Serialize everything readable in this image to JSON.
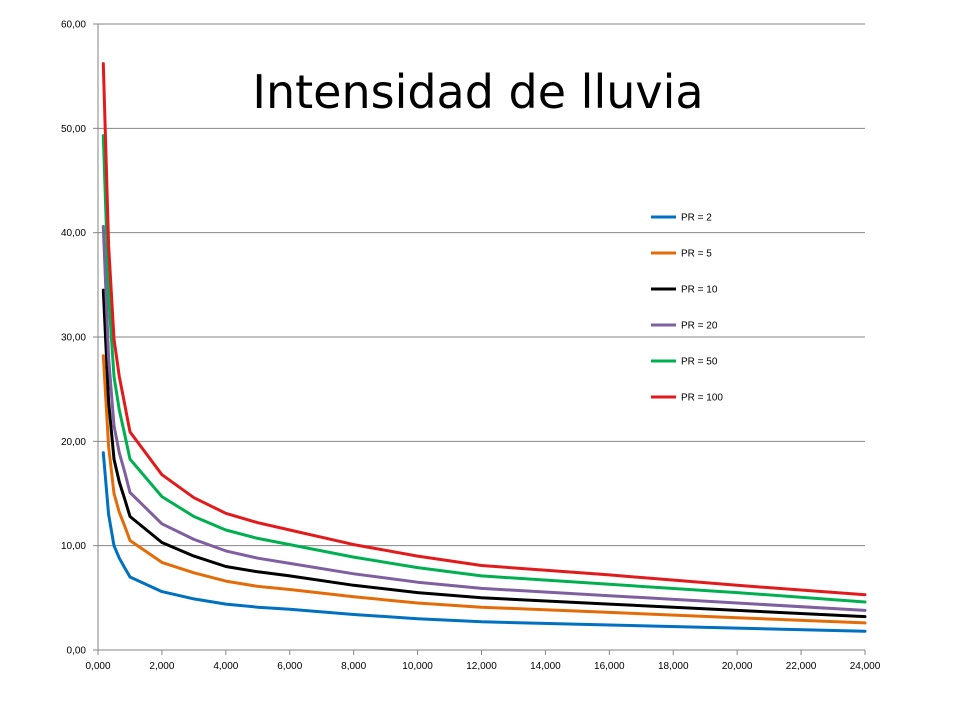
{
  "chart_data": {
    "type": "line",
    "title": "Intensidad de lluvia",
    "xlabel": "",
    "ylabel": "",
    "xlim": [
      0,
      24
    ],
    "ylim": [
      0,
      60
    ],
    "grid": "horizontal",
    "legend_position": "right",
    "x_ticks": [
      "0,000",
      "2,000",
      "4,000",
      "6,000",
      "8,000",
      "10,000",
      "12,000",
      "14,000",
      "16,000",
      "18,000",
      "20,000",
      "22,000",
      "24,000"
    ],
    "y_ticks": [
      "0,00",
      "10,00",
      "20,00",
      "30,00",
      "40,00",
      "50,00",
      "60,00"
    ],
    "x": [
      0.167,
      0.333,
      0.5,
      0.667,
      0.833,
      1,
      2,
      3,
      4,
      5,
      6,
      8,
      10,
      12,
      16,
      20,
      24
    ],
    "series": [
      {
        "name": "PR = 2",
        "color": "#0070C0",
        "values": [
          18.9,
          13.0,
          10.0,
          8.8,
          7.9,
          7.0,
          5.6,
          4.9,
          4.4,
          4.1,
          3.9,
          3.4,
          3.0,
          2.7,
          2.4,
          2.1,
          1.8
        ]
      },
      {
        "name": "PR = 5",
        "color": "#E36C09",
        "values": [
          28.2,
          19.5,
          15.0,
          13.2,
          11.9,
          10.5,
          8.4,
          7.4,
          6.6,
          6.1,
          5.8,
          5.1,
          4.5,
          4.1,
          3.6,
          3.1,
          2.6
        ]
      },
      {
        "name": "PR = 10",
        "color": "#000000",
        "values": [
          34.5,
          23.8,
          18.3,
          16.1,
          14.5,
          12.8,
          10.3,
          9.0,
          8.0,
          7.5,
          7.1,
          6.2,
          5.5,
          5.0,
          4.4,
          3.8,
          3.2
        ]
      },
      {
        "name": "PR = 20",
        "color": "#7F5F9F",
        "values": [
          40.6,
          28.0,
          21.5,
          18.9,
          17.1,
          15.1,
          12.1,
          10.6,
          9.5,
          8.8,
          8.3,
          7.3,
          6.5,
          5.9,
          5.2,
          4.5,
          3.8
        ]
      },
      {
        "name": "PR = 50",
        "color": "#00B050",
        "values": [
          49.3,
          34.0,
          26.2,
          23.0,
          20.7,
          18.3,
          14.7,
          12.8,
          11.5,
          10.7,
          10.1,
          8.9,
          7.9,
          7.1,
          6.3,
          5.5,
          4.6
        ]
      },
      {
        "name": "PR = 100",
        "color": "#E31A1C",
        "values": [
          56.2,
          38.8,
          29.8,
          26.2,
          23.6,
          20.9,
          16.8,
          14.6,
          13.1,
          12.2,
          11.5,
          10.1,
          9.0,
          8.1,
          7.2,
          6.2,
          5.3
        ]
      }
    ]
  }
}
